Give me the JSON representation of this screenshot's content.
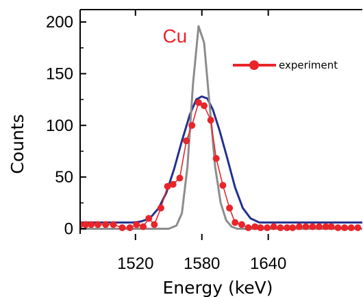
{
  "chart_data": {
    "type": "line",
    "title": "",
    "xlabel": "Energy (keV)",
    "ylabel": "Counts",
    "xlim": [
      1470,
      1725
    ],
    "ylim": [
      -5,
      212
    ],
    "xticks": [
      1520,
      1580,
      1640
    ],
    "xtick_labels": [
      "1520",
      "1580",
      "1640"
    ],
    "yticks": [
      0,
      50,
      100,
      150,
      200
    ],
    "ytick_labels": [
      "0",
      "50",
      "100",
      "150",
      "200"
    ],
    "grid": false,
    "legend_position": "top-right",
    "annotation": {
      "text": "Cu",
      "color": "#e8262a",
      "x": 1568,
      "y": 185
    },
    "colors": {
      "experiment": "#e8262a",
      "sim_narrow": "#8c8c8c",
      "sim_broad": "#23318c"
    },
    "series": [
      {
        "key": "experiment",
        "name": "experiment",
        "style": "line-markers",
        "points": [
          [
            1470,
            4
          ],
          [
            1475,
            4
          ],
          [
            1480,
            4
          ],
          [
            1486,
            4
          ],
          [
            1493,
            4
          ],
          [
            1500,
            4
          ],
          [
            1508,
            1
          ],
          [
            1515,
            1
          ],
          [
            1521,
            4
          ],
          [
            1527,
            2
          ],
          [
            1532,
            10
          ],
          [
            1537,
            4
          ],
          [
            1543,
            20
          ],
          [
            1549,
            41
          ],
          [
            1554,
            43
          ],
          [
            1560,
            49
          ],
          [
            1566,
            85
          ],
          [
            1571,
            100
          ],
          [
            1577,
            122
          ],
          [
            1582,
            119
          ],
          [
            1588,
            105
          ],
          [
            1593,
            68
          ],
          [
            1599,
            42
          ],
          [
            1605,
            20
          ],
          [
            1610,
            6
          ],
          [
            1616,
            4
          ],
          [
            1622,
            1
          ],
          [
            1628,
            2
          ],
          [
            1633,
            1
          ],
          [
            1639,
            1
          ],
          [
            1645,
            2
          ],
          [
            1651,
            1
          ],
          [
            1657,
            1
          ],
          [
            1662,
            1
          ],
          [
            1668,
            2
          ],
          [
            1674,
            2
          ],
          [
            1680,
            2
          ],
          [
            1686,
            2
          ],
          [
            1692,
            2
          ],
          [
            1697,
            2
          ],
          [
            1703,
            1
          ],
          [
            1709,
            1
          ],
          [
            1715,
            1
          ],
          [
            1721,
            1
          ]
        ]
      },
      {
        "key": "sim_narrow",
        "name": "",
        "style": "line",
        "points": [
          [
            1470,
            0
          ],
          [
            1550,
            0
          ],
          [
            1557,
            3
          ],
          [
            1562,
            15
          ],
          [
            1567,
            60
          ],
          [
            1572,
            140
          ],
          [
            1577,
            196
          ],
          [
            1582,
            180
          ],
          [
            1587,
            120
          ],
          [
            1592,
            60
          ],
          [
            1597,
            25
          ],
          [
            1602,
            8
          ],
          [
            1607,
            2
          ],
          [
            1612,
            0
          ],
          [
            1725,
            0
          ]
        ]
      },
      {
        "key": "sim_broad",
        "name": "",
        "style": "line",
        "points": [
          [
            1470,
            6
          ],
          [
            1518,
            6
          ],
          [
            1525,
            7
          ],
          [
            1533,
            10
          ],
          [
            1541,
            20
          ],
          [
            1548,
            35
          ],
          [
            1555,
            58
          ],
          [
            1562,
            85
          ],
          [
            1569,
            110
          ],
          [
            1575,
            125
          ],
          [
            1580,
            128
          ],
          [
            1585,
            126
          ],
          [
            1590,
            115
          ],
          [
            1596,
            95
          ],
          [
            1603,
            68
          ],
          [
            1610,
            40
          ],
          [
            1617,
            20
          ],
          [
            1624,
            10
          ],
          [
            1632,
            6
          ],
          [
            1725,
            6
          ]
        ]
      }
    ]
  }
}
